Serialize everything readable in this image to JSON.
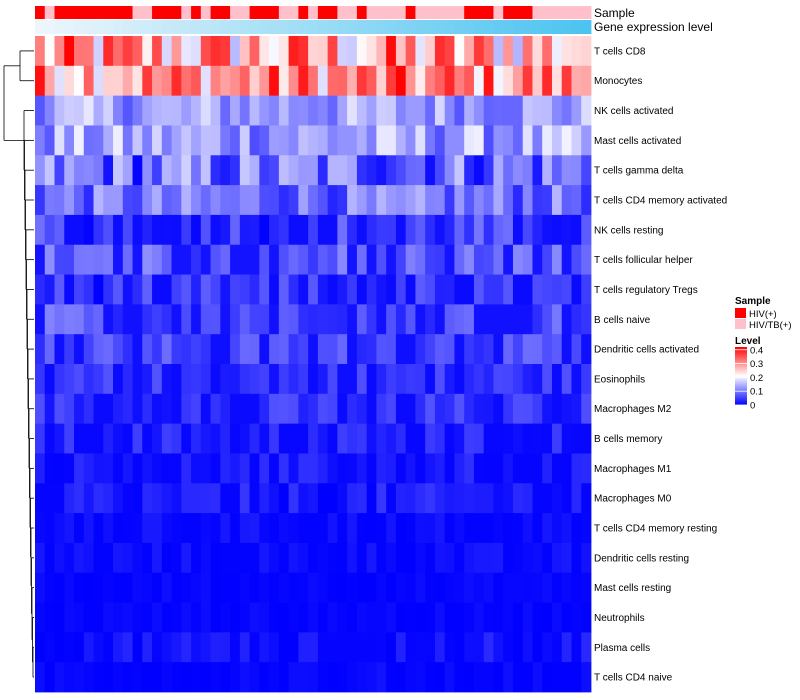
{
  "chart_data": {
    "type": "heatmap",
    "title": "",
    "annotation_rows": [
      {
        "key": "sample",
        "label": "Sample"
      },
      {
        "key": "gene_expression_level",
        "label": "Gene expression level"
      }
    ],
    "legend_sample": {
      "title": "Sample",
      "entries": [
        {
          "label": "HIV(+)",
          "color": "#ff0000"
        },
        {
          "label": "HIV/TB(+)",
          "color": "#ffc0cb"
        }
      ]
    },
    "legend_level": {
      "title": "Level",
      "ticks": [
        "0.4",
        "0.3",
        "0.2",
        "0.1",
        "0"
      ],
      "tick_values": [
        0.4,
        0.3,
        0.2,
        0.1,
        0
      ],
      "range": [
        0,
        0.42
      ],
      "colors": {
        "low": "#0000ff",
        "mid": "#ffffff",
        "high": "#ff0000"
      }
    },
    "sample_groups": [
      0,
      1,
      0,
      0,
      0,
      0,
      0,
      0,
      0,
      0,
      1,
      1,
      0,
      0,
      0,
      1,
      0,
      1,
      0,
      0,
      1,
      1,
      0,
      0,
      0,
      1,
      1,
      0,
      1,
      0,
      0,
      1,
      1,
      0,
      1,
      1,
      1,
      1,
      0,
      1,
      1,
      1,
      1,
      1,
      0,
      0,
      0,
      1,
      0,
      0,
      0,
      1,
      1,
      1,
      1,
      1,
      1
    ],
    "expression_gradient": {
      "from": "#eef6fb",
      "to": "#4cc3f0"
    },
    "rows": [
      "T cells CD8",
      "Monocytes",
      "NK cells activated",
      "Mast cells activated",
      "T cells gamma delta",
      "T cells CD4 memory activated",
      "NK cells resting",
      "T cells follicular helper",
      "T cells regulatory  Tregs",
      "B cells naive",
      "Dendritic cells activated",
      "Eosinophils",
      "Macrophages M2",
      "B cells memory",
      "Macrophages M1",
      "Macrophages M0",
      "T cells CD4 memory resting",
      "Dendritic cells resting",
      "Mast cells resting",
      "Neutrophils",
      "Plasma cells",
      "T cells CD4 naive"
    ],
    "row_base": [
      0.27,
      0.3,
      0.13,
      0.13,
      0.09,
      0.09,
      0.05,
      0.08,
      0.04,
      0.07,
      0.06,
      0.04,
      0.04,
      0.03,
      0.02,
      0.02,
      0.01,
      0.01,
      0.005,
      0.005,
      0.015,
      0.005
    ],
    "row_spread": [
      0.15,
      0.12,
      0.06,
      0.07,
      0.09,
      0.06,
      0.05,
      0.04,
      0.04,
      0.04,
      0.03,
      0.03,
      0.03,
      0.025,
      0.02,
      0.025,
      0.012,
      0.012,
      0.006,
      0.006,
      0.02,
      0.01
    ],
    "n_samples": 57
  }
}
